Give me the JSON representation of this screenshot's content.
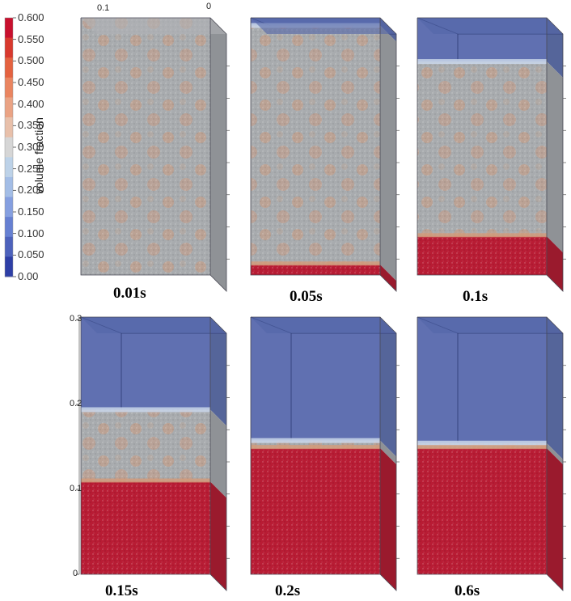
{
  "colorbar": {
    "title": "volume fraction",
    "ticks": [
      "0.600",
      "0.550",
      "0.500",
      "0.450",
      "0.400",
      "0.350",
      "0.300",
      "0.250",
      "0.200",
      "0.150",
      "0.100",
      "0.050",
      "0.00"
    ],
    "colors": [
      "#c8102e",
      "#d8392e",
      "#e46240",
      "#ea8560",
      "#eaa384",
      "#e8c0aa",
      "#d6d6d6",
      "#bdd2e8",
      "#a3bde6",
      "#859fe0",
      "#6680d2",
      "#4d62bc",
      "#2e3fa6"
    ]
  },
  "axis_top": {
    "left": "0.1",
    "right": "0"
  },
  "axis_left": {
    "values": [
      "0.3",
      "0.2",
      "0.1",
      "0"
    ]
  },
  "panels": [
    {
      "time": "0.01s",
      "red_bottom": 0.0,
      "particle_top": 1.0
    },
    {
      "time": "0.05s",
      "red_bottom": 0.04,
      "particle_top": 0.97
    },
    {
      "time": "0.1s",
      "red_bottom": 0.15,
      "particle_top": 0.83
    },
    {
      "time": "0.15s",
      "red_bottom": 0.36,
      "particle_top": 0.64
    },
    {
      "time": "0.2s",
      "red_bottom": 0.49,
      "particle_top": 0.52
    },
    {
      "time": "0.6s",
      "red_bottom": 0.49,
      "particle_top": 0.51
    }
  ],
  "colors": {
    "red": "#b81c34",
    "grey": "#a6a9ad",
    "blue": "#4f61a8",
    "orange": "#d39a78"
  }
}
